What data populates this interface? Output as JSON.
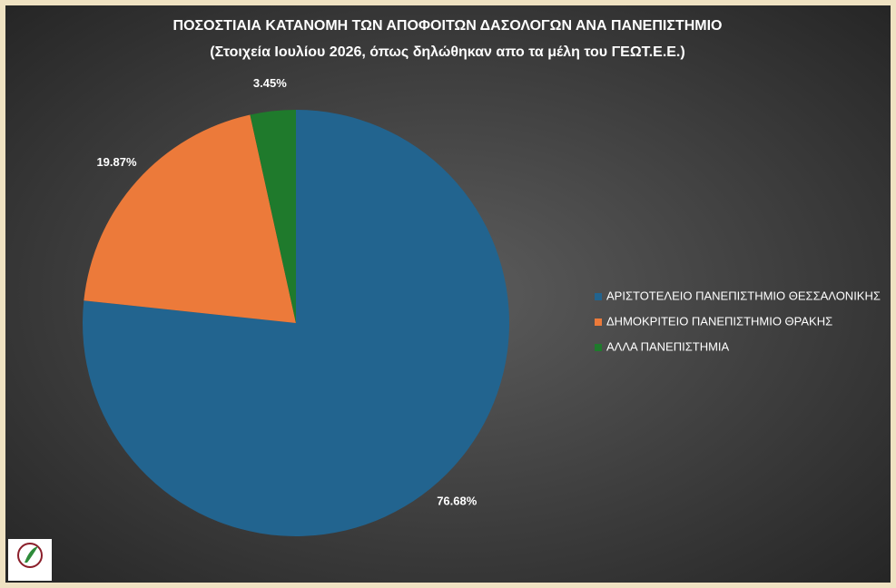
{
  "chart_data": {
    "type": "pie",
    "title": "ΠΟΣΟΣΤΙΑΙΑ ΚΑΤΑΝΟΜΗ ΤΩΝ ΑΠΟΦΟΙΤΩΝ ΔΑΣΟΛΟΓΩΝ ΑΝΑ ΠΑΝΕΠΙΣΤΗΜΙΟ",
    "subtitle": "(Στοιχεία Ιουλίου 2026, όπως δηλώθηκαν  απο τα μέλη του ΓΕΩΤ.Ε.Ε.)",
    "categories": [
      "ΑΡΙΣΤΟΤΕΛΕΙΟ ΠΑΝΕΠΙΣΤΗΜΙΟ ΘΕΣΣΑΛΟΝΙΚΗΣ",
      "ΔΗΜΟΚΡΙΤΕΙΟ ΠΑΝΕΠΙΣΤΗΜΙΟ ΘΡΑΚΗΣ",
      "ΑΛΛΑ ΠΑΝΕΠΙΣΤΗΜΙΑ"
    ],
    "values": [
      76.68,
      19.87,
      3.45
    ],
    "value_labels": [
      "76.68%",
      "19.87%",
      "3.45%"
    ],
    "colors": [
      "#22648f",
      "#ec7a3a",
      "#1f7a2c"
    ],
    "legend": "right"
  }
}
